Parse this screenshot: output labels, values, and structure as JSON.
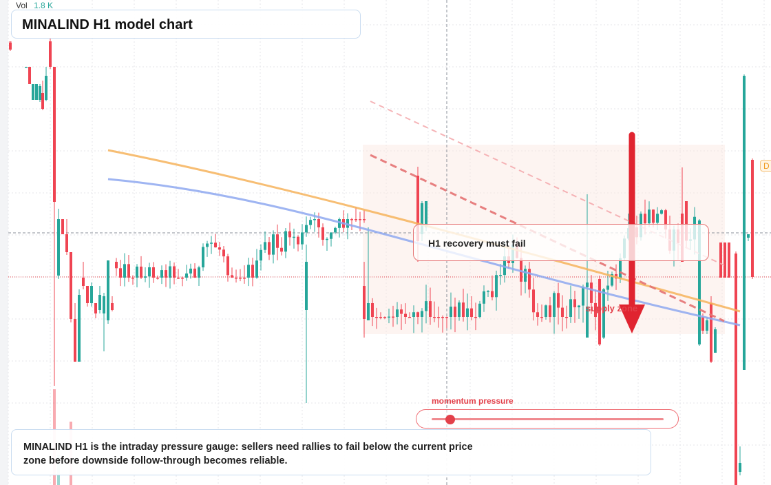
{
  "chart_data": {
    "type": "candlestick",
    "title": "MINALIND H1 model chart",
    "volume": {
      "label": "Vol",
      "value": "1.8 K"
    },
    "price_axis": {
      "labels_visible": false
    },
    "grid": "on (dotted)",
    "reference_levels": [
      {
        "name": "crosshair",
        "style": "dashed grey"
      },
      {
        "name": "current price",
        "style": "dotted red"
      }
    ],
    "moving_averages": [
      {
        "color": "#f6b35c",
        "style": "smooth declining line"
      },
      {
        "color": "#8ea8f0",
        "style": "smooth declining line"
      }
    ],
    "trendlines": [
      {
        "color": "#e57373",
        "style": "dashed, descending"
      },
      {
        "color": "#f4a7ab",
        "style": "dashed, descending"
      }
    ],
    "zone": {
      "label": "supply zone",
      "color": "#fbe6df"
    },
    "arrow": {
      "direction": "down",
      "color": "#e02430"
    },
    "colors": {
      "up": "#26a69a",
      "down": "#ef4452"
    },
    "callout": "H1 recovery must fail",
    "momentum": {
      "label": "momentum pressure",
      "level": 0.08
    },
    "summary": "MINALIND H1 is the intraday pressure gauge: sellers need rallies to fail below the current price zone before downside follow-through becomes reliable.",
    "badge": "D"
  }
}
